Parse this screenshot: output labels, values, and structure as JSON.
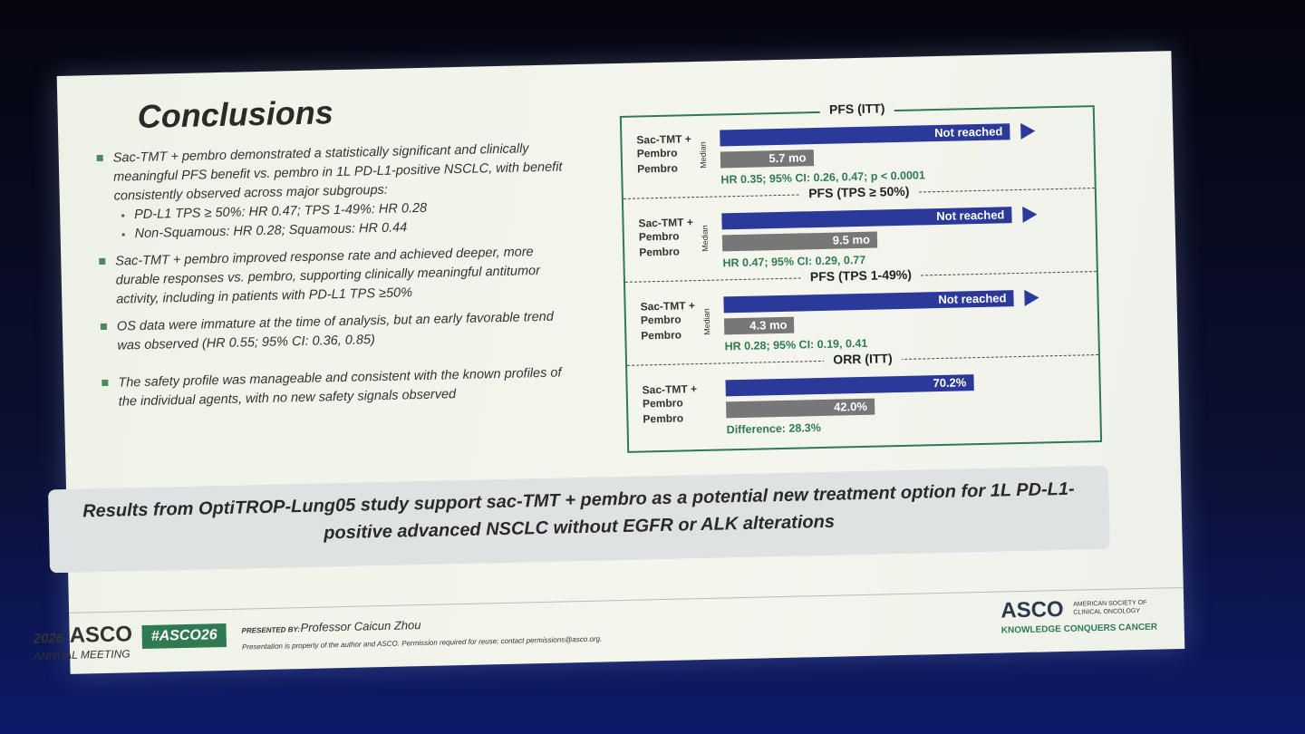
{
  "slide": {
    "title": "Conclusions",
    "bullets": [
      {
        "text": "Sac-TMT + pembro demonstrated a statistically significant and clinically meaningful PFS benefit vs. pembro in 1L PD-L1-positive NSCLC, with benefit consistently observed across major subgroups:",
        "sub": [
          "PD-L1 TPS ≥ 50%: HR 0.47; TPS 1-49%: HR 0.28",
          "Non-Squamous: HR 0.28; Squamous: HR 0.44"
        ]
      },
      {
        "text": "Sac-TMT + pembro improved response rate and achieved deeper, more durable responses vs. pembro, supporting clinically meaningful antitumor activity, including in patients with PD-L1 TPS ≥50%"
      },
      {
        "text": "OS data were immature at the time of analysis, but an early favorable trend was observed (HR 0.55; 95% CI: 0.36, 0.85)"
      },
      {
        "text": "The safety profile was manageable and consistent with the known profiles of the individual agents, with no new safety signals observed"
      }
    ],
    "panels": [
      {
        "title": "PFS (ITT)",
        "arm_label": "Sac-TMT + Pembro",
        "control_label": "Pembro",
        "axis_label": "Median",
        "treatment": {
          "label": "Not reached"
        },
        "control": {
          "value": 5.7,
          "label": "5.7 mo"
        },
        "note": "HR 0.35; 95% CI: 0.26, 0.47; p < 0.0001"
      },
      {
        "title": "PFS (TPS ≥ 50%)",
        "arm_label": "Sac-TMT + Pembro",
        "control_label": "Pembro",
        "axis_label": "Median",
        "treatment": {
          "label": "Not reached"
        },
        "control": {
          "value": 9.5,
          "label": "9.5 mo"
        },
        "note": "HR 0.47; 95% CI: 0.29, 0.77"
      },
      {
        "title": "PFS (TPS 1-49%)",
        "arm_label": "Sac-TMT + Pembro",
        "control_label": "Pembro",
        "axis_label": "Median",
        "treatment": {
          "label": "Not reached"
        },
        "control": {
          "value": 4.3,
          "label": "4.3 mo"
        },
        "note": "HR 0.28; 95% CI: 0.19, 0.41"
      },
      {
        "title": "ORR (ITT)",
        "arm_label": "Sac-TMT + Pembro",
        "control_label": "Pembro",
        "treatment": {
          "value": 70.2,
          "label": "70.2%"
        },
        "control": {
          "value": 42.0,
          "label": "42.0%"
        },
        "note": "Difference: 28.3%"
      }
    ],
    "conclusion": [
      "Results from OptiTROP-Lung05 study support sac-TMT + pembro as a potential new treatment option for 1L PD-L1-positive advanced NSCLC without ",
      "EGFR",
      " or ",
      "ALK",
      " alterations"
    ],
    "footer": {
      "meeting_year": "2026",
      "meeting_brand": "ASCO",
      "meeting_name": "ANNUAL MEETING",
      "hashtag": "#ASCO26",
      "presented_by": "PRESENTED BY:",
      "presenter": "Professor Caicun Zhou",
      "disclaimer": "Presentation is property of the author and ASCO. Permission required for reuse; contact permissions@asco.org.",
      "org_logo": "ASCO",
      "org_name": "AMERICAN SOCIETY OF CLINICAL ONCOLOGY",
      "tagline": "KNOWLEDGE CONQUERS CANCER"
    }
  }
}
